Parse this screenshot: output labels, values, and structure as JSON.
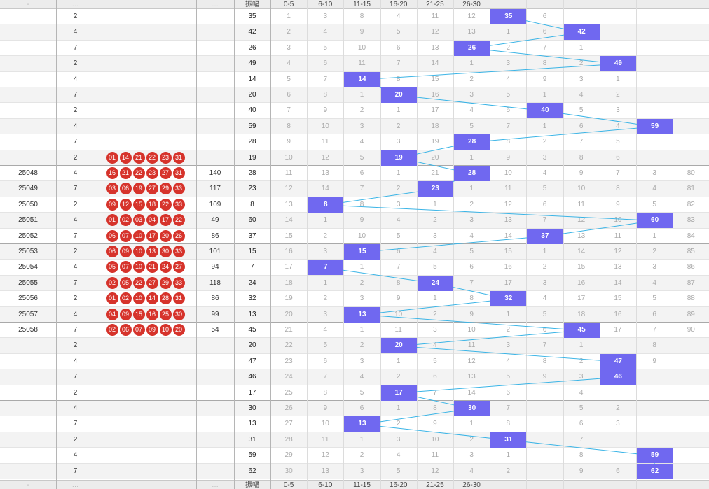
{
  "header": {
    "amplitude_label": "振幅",
    "zones": [
      "0-5",
      "6-10",
      "11-15",
      "16-20",
      "21-25",
      "26-30"
    ],
    "bottom_left": [
      "-",
      "…",
      "",
      "…"
    ]
  },
  "colors": {
    "hit": "#7068f0",
    "trend_line": "#3ab4e6",
    "ball": "#d6332b"
  },
  "chart_data": {
    "type": "table",
    "title": "",
    "columns": [
      "issue",
      "sum",
      "balls",
      "span",
      "振幅",
      "0-5",
      "6-10",
      "11-15",
      "16-20",
      "21-25",
      "26-30"
    ],
    "rows": [
      {
        "issue": "",
        "sum": "2",
        "balls": [],
        "span": "",
        "amp": 35,
        "zones": [
          1,
          3,
          8,
          4,
          11,
          12,
          null,
          6,
          "",
          "",
          ""
        ]
      },
      {
        "issue": "",
        "sum": "4",
        "balls": [],
        "span": "",
        "amp": 42,
        "zones": [
          2,
          4,
          9,
          5,
          12,
          13,
          1,
          6,
          null,
          "",
          ""
        ]
      },
      {
        "issue": "",
        "sum": "7",
        "balls": [],
        "span": "",
        "amp": 26,
        "zones": [
          3,
          5,
          10,
          6,
          13,
          null,
          2,
          7,
          1,
          "",
          ""
        ]
      },
      {
        "issue": "",
        "sum": "2",
        "balls": [],
        "span": "",
        "amp": 49,
        "zones": [
          4,
          6,
          11,
          7,
          14,
          1,
          3,
          8,
          2,
          null,
          ""
        ]
      },
      {
        "issue": "",
        "sum": "4",
        "balls": [],
        "span": "",
        "amp": 14,
        "zones": [
          5,
          7,
          null,
          8,
          15,
          2,
          4,
          9,
          3,
          1,
          ""
        ]
      },
      {
        "issue": "",
        "sum": "7",
        "balls": [],
        "span": "",
        "amp": 20,
        "zones": [
          6,
          8,
          1,
          null,
          16,
          3,
          5,
          1,
          4,
          2,
          ""
        ]
      },
      {
        "issue": "",
        "sum": "2",
        "balls": [],
        "span": "",
        "amp": 40,
        "zones": [
          7,
          9,
          2,
          1,
          17,
          4,
          6,
          null,
          5,
          3,
          ""
        ]
      },
      {
        "issue": "",
        "sum": "4",
        "balls": [],
        "span": "",
        "amp": 59,
        "zones": [
          8,
          10,
          3,
          2,
          18,
          5,
          7,
          1,
          6,
          4,
          null
        ]
      },
      {
        "issue": "",
        "sum": "7",
        "balls": [],
        "span": "",
        "amp": 28,
        "zones": [
          9,
          11,
          4,
          3,
          19,
          null,
          8,
          2,
          7,
          5,
          ""
        ]
      },
      {
        "issue": "",
        "sum": "2",
        "balls": [
          "01",
          "14",
          "21",
          "22",
          "23",
          "31"
        ],
        "span": "",
        "amp": 19,
        "zones": [
          10,
          12,
          5,
          null,
          20,
          1,
          9,
          3,
          8,
          6,
          ""
        ]
      },
      {
        "issue": "25048",
        "sum": "4",
        "balls": [
          "16",
          "21",
          "22",
          "23",
          "27",
          "31"
        ],
        "span": "140",
        "amp": 28,
        "zones": [
          11,
          13,
          6,
          1,
          21,
          null,
          10,
          4,
          9,
          7,
          3,
          80
        ]
      },
      {
        "issue": "25049",
        "sum": "7",
        "balls": [
          "03",
          "06",
          "19",
          "27",
          "29",
          "33"
        ],
        "span": "117",
        "amp": 23,
        "zones": [
          12,
          14,
          7,
          2,
          null,
          1,
          11,
          5,
          10,
          8,
          4,
          81
        ]
      },
      {
        "issue": "25050",
        "sum": "2",
        "balls": [
          "09",
          "12",
          "15",
          "18",
          "22",
          "33"
        ],
        "span": "109",
        "amp": 8,
        "zones": [
          13,
          null,
          8,
          3,
          1,
          2,
          12,
          6,
          11,
          9,
          5,
          82
        ]
      },
      {
        "issue": "25051",
        "sum": "4",
        "balls": [
          "01",
          "02",
          "03",
          "04",
          "17",
          "22"
        ],
        "span": "49",
        "amp": 60,
        "zones": [
          14,
          1,
          9,
          4,
          2,
          3,
          13,
          7,
          12,
          10,
          null,
          83
        ]
      },
      {
        "issue": "25052",
        "sum": "7",
        "balls": [
          "06",
          "07",
          "10",
          "17",
          "20",
          "26"
        ],
        "span": "86",
        "amp": 37,
        "zones": [
          15,
          2,
          10,
          5,
          3,
          4,
          14,
          null,
          13,
          11,
          1,
          84
        ]
      },
      {
        "issue": "25053",
        "sum": "2",
        "balls": [
          "06",
          "09",
          "10",
          "13",
          "30",
          "33"
        ],
        "span": "101",
        "amp": 15,
        "zones": [
          16,
          3,
          null,
          6,
          4,
          5,
          15,
          1,
          14,
          12,
          2,
          85
        ]
      },
      {
        "issue": "25054",
        "sum": "4",
        "balls": [
          "05",
          "07",
          "10",
          "21",
          "24",
          "27"
        ],
        "span": "94",
        "amp": 7,
        "zones": [
          17,
          null,
          1,
          7,
          5,
          6,
          16,
          2,
          15,
          13,
          3,
          86
        ]
      },
      {
        "issue": "25055",
        "sum": "7",
        "balls": [
          "02",
          "05",
          "22",
          "27",
          "29",
          "33"
        ],
        "span": "118",
        "amp": 24,
        "zones": [
          18,
          1,
          2,
          8,
          null,
          7,
          17,
          3,
          16,
          14,
          4,
          87
        ]
      },
      {
        "issue": "25056",
        "sum": "2",
        "balls": [
          "01",
          "02",
          "10",
          "14",
          "28",
          "31"
        ],
        "span": "86",
        "amp": 32,
        "zones": [
          19,
          2,
          3,
          9,
          1,
          8,
          null,
          4,
          17,
          15,
          5,
          88
        ]
      },
      {
        "issue": "25057",
        "sum": "4",
        "balls": [
          "04",
          "09",
          "15",
          "16",
          "25",
          "30"
        ],
        "span": "99",
        "amp": 13,
        "zones": [
          20,
          3,
          null,
          10,
          2,
          9,
          1,
          5,
          18,
          16,
          6,
          89
        ]
      },
      {
        "issue": "25058",
        "sum": "7",
        "balls": [
          "02",
          "06",
          "07",
          "09",
          "10",
          "20"
        ],
        "span": "54",
        "amp": 45,
        "zones": [
          21,
          4,
          1,
          11,
          3,
          10,
          2,
          6,
          null,
          17,
          7,
          90
        ]
      },
      {
        "issue": "",
        "sum": "2",
        "balls": [],
        "span": "",
        "amp": 20,
        "zones": [
          22,
          5,
          2,
          null,
          4,
          11,
          3,
          7,
          1,
          "",
          8,
          ""
        ]
      },
      {
        "issue": "",
        "sum": "4",
        "balls": [],
        "span": "",
        "amp": 47,
        "zones": [
          23,
          6,
          3,
          1,
          5,
          12,
          4,
          8,
          2,
          null,
          9,
          ""
        ]
      },
      {
        "issue": "",
        "sum": "7",
        "balls": [],
        "span": "",
        "amp": 46,
        "zones": [
          24,
          7,
          4,
          2,
          6,
          13,
          5,
          9,
          3,
          null,
          "",
          ""
        ]
      },
      {
        "issue": "",
        "sum": "2",
        "balls": [],
        "span": "",
        "amp": 17,
        "zones": [
          25,
          8,
          5,
          null,
          7,
          14,
          6,
          "",
          4,
          "",
          "",
          ""
        ]
      },
      {
        "issue": "",
        "sum": "4",
        "balls": [],
        "span": "",
        "amp": 30,
        "zones": [
          26,
          9,
          6,
          1,
          8,
          null,
          7,
          "",
          5,
          2,
          "",
          ""
        ]
      },
      {
        "issue": "",
        "sum": "7",
        "balls": [],
        "span": "",
        "amp": 13,
        "zones": [
          27,
          10,
          null,
          2,
          9,
          1,
          8,
          "",
          6,
          3,
          "",
          ""
        ]
      },
      {
        "issue": "",
        "sum": "2",
        "balls": [],
        "span": "",
        "amp": 31,
        "zones": [
          28,
          11,
          1,
          3,
          10,
          2,
          null,
          "",
          7,
          "",
          "",
          ""
        ]
      },
      {
        "issue": "",
        "sum": "4",
        "balls": [],
        "span": "",
        "amp": 59,
        "zones": [
          29,
          12,
          2,
          4,
          11,
          3,
          1,
          "",
          8,
          "",
          null,
          ""
        ]
      },
      {
        "issue": "",
        "sum": "7",
        "balls": [],
        "span": "",
        "amp": 62,
        "zones": [
          30,
          13,
          3,
          5,
          12,
          4,
          2,
          "",
          9,
          6,
          null,
          ""
        ]
      }
    ]
  }
}
